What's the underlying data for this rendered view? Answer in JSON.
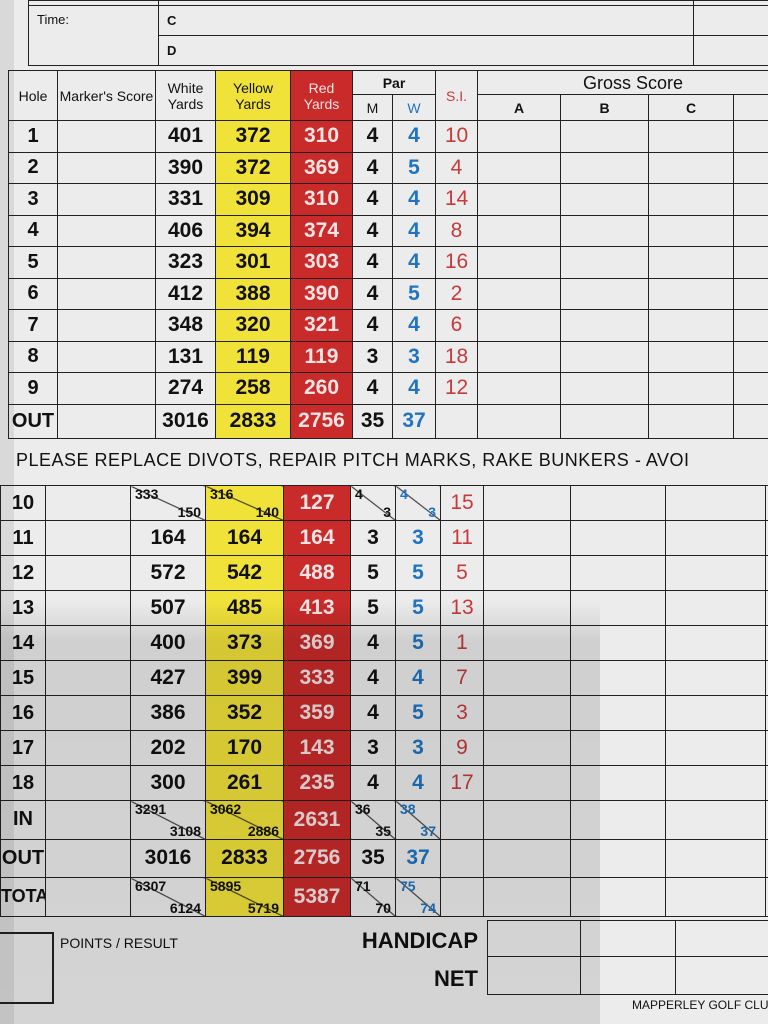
{
  "top_section": {
    "time_label": "Time:",
    "players": [
      "C",
      "D"
    ]
  },
  "header": {
    "hole": "Hole",
    "marker": "Marker's Score",
    "white": "White Yards",
    "yellow": "Yellow Yards",
    "red": "Red Yards",
    "par": "Par",
    "par_m": "M",
    "par_w": "W",
    "si": "S.I.",
    "gross": "Gross Score",
    "gross_cols": [
      "A",
      "B",
      "C"
    ]
  },
  "front_nine": [
    {
      "hole": "1",
      "white": "401",
      "yellow": "372",
      "red": "310",
      "m": "4",
      "w": "4",
      "si": "10"
    },
    {
      "hole": "2",
      "white": "390",
      "yellow": "372",
      "red": "369",
      "m": "4",
      "w": "5",
      "si": "4"
    },
    {
      "hole": "3",
      "white": "331",
      "yellow": "309",
      "red": "310",
      "m": "4",
      "w": "4",
      "si": "14"
    },
    {
      "hole": "4",
      "white": "406",
      "yellow": "394",
      "red": "374",
      "m": "4",
      "w": "4",
      "si": "8"
    },
    {
      "hole": "5",
      "white": "323",
      "yellow": "301",
      "red": "303",
      "m": "4",
      "w": "4",
      "si": "16"
    },
    {
      "hole": "6",
      "white": "412",
      "yellow": "388",
      "red": "390",
      "m": "4",
      "w": "5",
      "si": "2"
    },
    {
      "hole": "7",
      "white": "348",
      "yellow": "320",
      "red": "321",
      "m": "4",
      "w": "4",
      "si": "6"
    },
    {
      "hole": "8",
      "white": "131",
      "yellow": "119",
      "red": "119",
      "m": "3",
      "w": "3",
      "si": "18"
    },
    {
      "hole": "9",
      "white": "274",
      "yellow": "258",
      "red": "260",
      "m": "4",
      "w": "4",
      "si": "12"
    }
  ],
  "front_out": {
    "hole": "OUT",
    "white": "3016",
    "yellow": "2833",
    "red": "2756",
    "m": "35",
    "w": "37"
  },
  "banner": "PLEASE REPLACE DIVOTS, REPAIR PITCH MARKS, RAKE BUNKERS - AVOI",
  "back_nine": [
    {
      "hole": "10",
      "white": {
        "t": "333",
        "b": "150"
      },
      "yellow": {
        "t": "316",
        "b": "140"
      },
      "red": "127",
      "m": {
        "t": "4",
        "b": "3"
      },
      "w": {
        "t": "4",
        "b": "3"
      },
      "si": "15"
    },
    {
      "hole": "11",
      "white": "164",
      "yellow": "164",
      "red": "164",
      "m": "3",
      "w": "3",
      "si": "11"
    },
    {
      "hole": "12",
      "white": "572",
      "yellow": "542",
      "red": "488",
      "m": "5",
      "w": "5",
      "si": "5"
    },
    {
      "hole": "13",
      "white": "507",
      "yellow": "485",
      "red": "413",
      "m": "5",
      "w": "5",
      "si": "13"
    },
    {
      "hole": "14",
      "white": "400",
      "yellow": "373",
      "red": "369",
      "m": "4",
      "w": "5",
      "si": "1"
    },
    {
      "hole": "15",
      "white": "427",
      "yellow": "399",
      "red": "333",
      "m": "4",
      "w": "4",
      "si": "7"
    },
    {
      "hole": "16",
      "white": "386",
      "yellow": "352",
      "red": "359",
      "m": "4",
      "w": "5",
      "si": "3"
    },
    {
      "hole": "17",
      "white": "202",
      "yellow": "170",
      "red": "143",
      "m": "3",
      "w": "3",
      "si": "9"
    },
    {
      "hole": "18",
      "white": "300",
      "yellow": "261",
      "red": "235",
      "m": "4",
      "w": "4",
      "si": "17"
    }
  ],
  "totals": [
    {
      "hole": "IN",
      "white": {
        "t": "3291",
        "b": "3108"
      },
      "yellow": {
        "t": "3062",
        "b": "2886"
      },
      "red": "2631",
      "m": {
        "t": "36",
        "b": "35"
      },
      "w": {
        "t": "38",
        "b": "37"
      }
    },
    {
      "hole": "OUT",
      "white": "3016",
      "yellow": "2833",
      "red": "2756",
      "m": "35",
      "w": "37"
    },
    {
      "hole": "TOTAL",
      "white": {
        "t": "6307",
        "b": "6124"
      },
      "yellow": {
        "t": "5895",
        "b": "5719"
      },
      "red": "5387",
      "m": {
        "t": "71",
        "b": "70"
      },
      "w": {
        "t": "75",
        "b": "74"
      }
    }
  ],
  "footer": {
    "points_result": "POINTS / RESULT",
    "handicap": "HANDICAP",
    "net": "NET",
    "club": "MAPPERLEY GOLF CLU"
  },
  "colors": {
    "yellow": "#f1e23a",
    "red": "#c92a2a",
    "blue": "#1f73c0",
    "si_red": "#c63a3a"
  }
}
